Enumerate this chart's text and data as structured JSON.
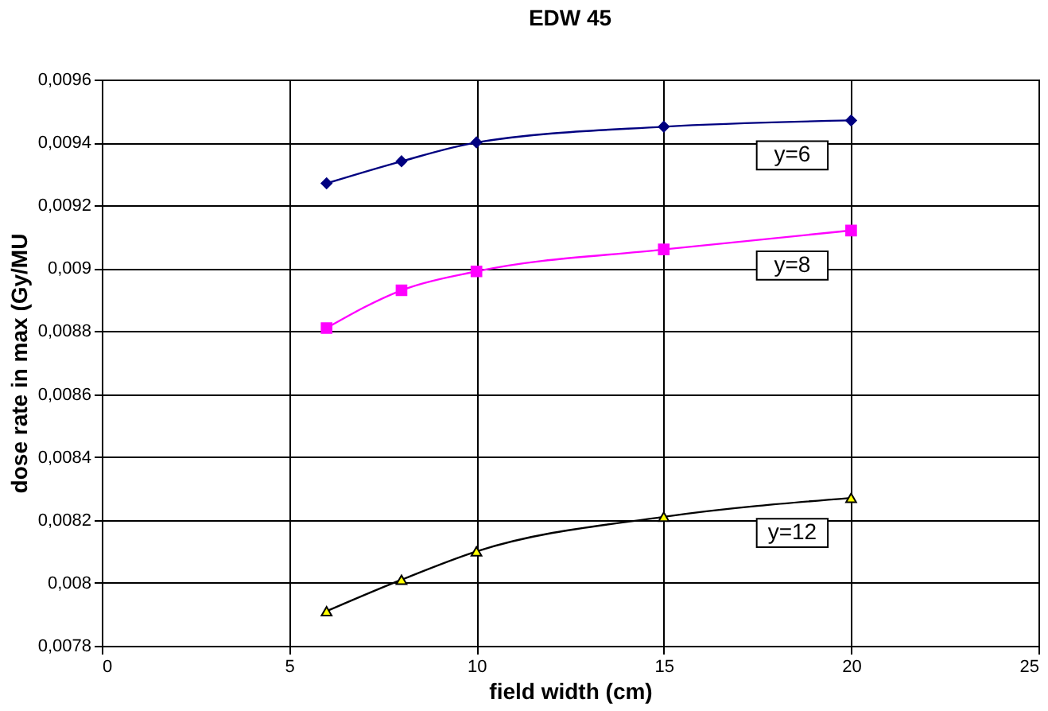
{
  "chart_data": {
    "type": "line",
    "title": "EDW 45",
    "xlabel": "field width (cm)",
    "ylabel": "dose rate in  max (Gy/MU",
    "x": [
      6,
      8,
      10,
      15,
      20
    ],
    "series": [
      {
        "name": "y=6",
        "color": "#000080",
        "marker": "diamond",
        "values": [
          0.00927,
          0.00934,
          0.0094,
          0.00945,
          0.00947
        ]
      },
      {
        "name": "y=8",
        "color": "#ff00ff",
        "marker": "square",
        "values": [
          0.00881,
          0.00893,
          0.00899,
          0.00906,
          0.00912
        ]
      },
      {
        "name": "y=12",
        "color": "#000000",
        "marker": "triangle",
        "values": [
          0.00791,
          0.00801,
          0.0081,
          0.00821,
          0.00827
        ]
      }
    ],
    "xlim": [
      0,
      25
    ],
    "xticks": [
      0,
      5,
      10,
      15,
      20,
      25
    ],
    "ylim": [
      0.0078,
      0.0096
    ],
    "yticks": [
      {
        "value": 0.0078,
        "label": "0,0078"
      },
      {
        "value": 0.008,
        "label": "0,008"
      },
      {
        "value": 0.0082,
        "label": "0,0082"
      },
      {
        "value": 0.0084,
        "label": "0,0084"
      },
      {
        "value": 0.0086,
        "label": "0,0086"
      },
      {
        "value": 0.0088,
        "label": "0,0088"
      },
      {
        "value": 0.009,
        "label": "0,009"
      },
      {
        "value": 0.0092,
        "label": "0,0092"
      },
      {
        "value": 0.0094,
        "label": "0,0094"
      },
      {
        "value": 0.0096,
        "label": "0,0096"
      }
    ],
    "grid": true,
    "line_style": "solid"
  }
}
